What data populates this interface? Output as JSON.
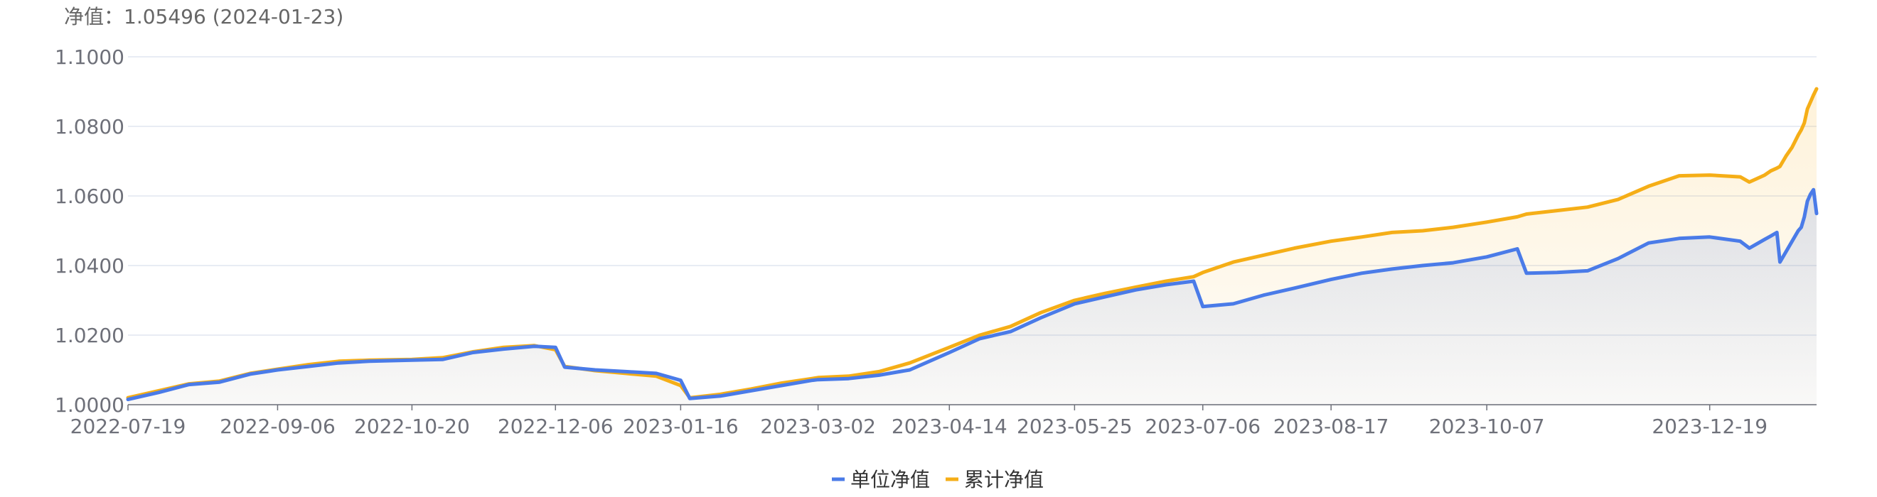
{
  "header": {
    "label": "净值：",
    "value": "1.05496",
    "date": "(2024-01-23)"
  },
  "chart_data": {
    "type": "area",
    "x_ticks": [
      "2022-07-19",
      "2022-09-06",
      "2022-10-20",
      "2022-12-06",
      "2023-01-16",
      "2023-03-02",
      "2023-04-14",
      "2023-05-25",
      "2023-07-06",
      "2023-08-17",
      "2023-10-07",
      "2023-12-19"
    ],
    "y_ticks": [
      "1.0000",
      "1.0200",
      "1.0400",
      "1.0600",
      "1.0800",
      "1.1000"
    ],
    "ylim": [
      1.0,
      1.1
    ],
    "grid": true,
    "legend_placement": "bottom-center",
    "series": [
      {
        "name": "单位净值",
        "color": "#4a7be8",
        "points": [
          [
            "2022-07-19",
            1.0015
          ],
          [
            "2022-07-29",
            1.0035
          ],
          [
            "2022-08-08",
            1.0058
          ],
          [
            "2022-08-18",
            1.0065
          ],
          [
            "2022-08-28",
            1.0088
          ],
          [
            "2022-09-06",
            1.01
          ],
          [
            "2022-09-16",
            1.011
          ],
          [
            "2022-09-26",
            1.012
          ],
          [
            "2022-10-06",
            1.0125
          ],
          [
            "2022-10-20",
            1.0128
          ],
          [
            "2022-10-30",
            1.013
          ],
          [
            "2022-11-09",
            1.015
          ],
          [
            "2022-11-19",
            1.016
          ],
          [
            "2022-11-29",
            1.0168
          ],
          [
            "2022-12-06",
            1.0165
          ],
          [
            "2022-12-09",
            1.0108
          ],
          [
            "2022-12-19",
            1.01
          ],
          [
            "2022-12-29",
            1.0095
          ],
          [
            "2023-01-08",
            1.009
          ],
          [
            "2023-01-16",
            1.007
          ],
          [
            "2023-01-19",
            1.0018
          ],
          [
            "2023-01-29",
            1.0025
          ],
          [
            "2023-02-08",
            1.004
          ],
          [
            "2023-02-18",
            1.0055
          ],
          [
            "2023-02-28",
            1.007
          ],
          [
            "2023-03-02",
            1.0072
          ],
          [
            "2023-03-12",
            1.0075
          ],
          [
            "2023-03-22",
            1.0085
          ],
          [
            "2023-04-01",
            1.01
          ],
          [
            "2023-04-14",
            1.015
          ],
          [
            "2023-04-24",
            1.019
          ],
          [
            "2023-05-04",
            1.021
          ],
          [
            "2023-05-14",
            1.025
          ],
          [
            "2023-05-25",
            1.029
          ],
          [
            "2023-06-04",
            1.031
          ],
          [
            "2023-06-14",
            1.033
          ],
          [
            "2023-06-24",
            1.0345
          ],
          [
            "2023-07-03",
            1.0355
          ],
          [
            "2023-07-06",
            1.0282
          ],
          [
            "2023-07-16",
            1.029
          ],
          [
            "2023-07-26",
            1.0315
          ],
          [
            "2023-08-05",
            1.0335
          ],
          [
            "2023-08-17",
            1.036
          ],
          [
            "2023-08-27",
            1.0378
          ],
          [
            "2023-09-06",
            1.039
          ],
          [
            "2023-09-16",
            1.04
          ],
          [
            "2023-09-26",
            1.0408
          ],
          [
            "2023-10-07",
            1.0425
          ],
          [
            "2023-10-17",
            1.0448
          ],
          [
            "2023-10-20",
            1.0378
          ],
          [
            "2023-10-30",
            1.038
          ],
          [
            "2023-11-09",
            1.0385
          ],
          [
            "2023-11-19",
            1.042
          ],
          [
            "2023-11-29",
            1.0465
          ],
          [
            "2023-12-09",
            1.0478
          ],
          [
            "2023-12-19",
            1.0482
          ],
          [
            "2023-12-29",
            1.047
          ],
          [
            "2024-01-01",
            1.045
          ],
          [
            "2024-01-03",
            1.046
          ],
          [
            "2024-01-06",
            1.0475
          ],
          [
            "2024-01-08",
            1.0485
          ],
          [
            "2024-01-10",
            1.0495
          ],
          [
            "2024-01-11",
            1.041
          ],
          [
            "2024-01-13",
            1.044
          ],
          [
            "2024-01-15",
            1.047
          ],
          [
            "2024-01-17",
            1.05
          ],
          [
            "2024-01-18",
            1.051
          ],
          [
            "2024-01-19",
            1.054
          ],
          [
            "2024-01-20",
            1.0585
          ],
          [
            "2024-01-21",
            1.0605
          ],
          [
            "2024-01-22",
            1.0618
          ],
          [
            "2024-01-23",
            1.05496
          ]
        ]
      },
      {
        "name": "累计净值",
        "color": "#f5ae17",
        "points": [
          [
            "2022-07-19",
            1.002
          ],
          [
            "2022-07-29",
            1.004
          ],
          [
            "2022-08-08",
            1.006
          ],
          [
            "2022-08-18",
            1.0068
          ],
          [
            "2022-08-28",
            1.009
          ],
          [
            "2022-09-06",
            1.0102
          ],
          [
            "2022-09-16",
            1.0115
          ],
          [
            "2022-09-26",
            1.0125
          ],
          [
            "2022-10-06",
            1.0128
          ],
          [
            "2022-10-20",
            1.013
          ],
          [
            "2022-10-30",
            1.0135
          ],
          [
            "2022-11-09",
            1.0152
          ],
          [
            "2022-11-19",
            1.0165
          ],
          [
            "2022-11-29",
            1.017
          ],
          [
            "2022-12-06",
            1.0158
          ],
          [
            "2022-12-09",
            1.011
          ],
          [
            "2022-12-19",
            1.0098
          ],
          [
            "2022-12-29",
            1.009
          ],
          [
            "2023-01-08",
            1.0082
          ],
          [
            "2023-01-16",
            1.0055
          ],
          [
            "2023-01-19",
            1.002
          ],
          [
            "2023-01-29",
            1.003
          ],
          [
            "2023-02-08",
            1.0045
          ],
          [
            "2023-02-18",
            1.0062
          ],
          [
            "2023-02-28",
            1.0075
          ],
          [
            "2023-03-02",
            1.0078
          ],
          [
            "2023-03-12",
            1.0082
          ],
          [
            "2023-03-22",
            1.0095
          ],
          [
            "2023-04-01",
            1.012
          ],
          [
            "2023-04-14",
            1.0165
          ],
          [
            "2023-04-24",
            1.02
          ],
          [
            "2023-05-04",
            1.0225
          ],
          [
            "2023-05-14",
            1.0265
          ],
          [
            "2023-05-25",
            1.03
          ],
          [
            "2023-06-04",
            1.032
          ],
          [
            "2023-06-14",
            1.0338
          ],
          [
            "2023-06-24",
            1.0355
          ],
          [
            "2023-07-03",
            1.0368
          ],
          [
            "2023-07-06",
            1.038
          ],
          [
            "2023-07-16",
            1.041
          ],
          [
            "2023-07-26",
            1.043
          ],
          [
            "2023-08-05",
            1.045
          ],
          [
            "2023-08-17",
            1.047
          ],
          [
            "2023-08-27",
            1.0482
          ],
          [
            "2023-09-06",
            1.0495
          ],
          [
            "2023-09-16",
            1.05
          ],
          [
            "2023-09-26",
            1.051
          ],
          [
            "2023-10-07",
            1.0525
          ],
          [
            "2023-10-17",
            1.054
          ],
          [
            "2023-10-20",
            1.0548
          ],
          [
            "2023-10-30",
            1.0558
          ],
          [
            "2023-11-09",
            1.0568
          ],
          [
            "2023-11-19",
            1.059
          ],
          [
            "2023-11-29",
            1.0628
          ],
          [
            "2023-12-09",
            1.0658
          ],
          [
            "2023-12-19",
            1.066
          ],
          [
            "2023-12-29",
            1.0655
          ],
          [
            "2024-01-01",
            1.064
          ],
          [
            "2024-01-03",
            1.0648
          ],
          [
            "2024-01-06",
            1.066
          ],
          [
            "2024-01-08",
            1.0672
          ],
          [
            "2024-01-10",
            1.068
          ],
          [
            "2024-01-11",
            1.0685
          ],
          [
            "2024-01-13",
            1.0715
          ],
          [
            "2024-01-15",
            1.074
          ],
          [
            "2024-01-17",
            1.0775
          ],
          [
            "2024-01-18",
            1.079
          ],
          [
            "2024-01-19",
            1.081
          ],
          [
            "2024-01-20",
            1.085
          ],
          [
            "2024-01-21",
            1.087
          ],
          [
            "2024-01-22",
            1.089
          ],
          [
            "2024-01-23",
            1.0908
          ]
        ]
      }
    ]
  }
}
